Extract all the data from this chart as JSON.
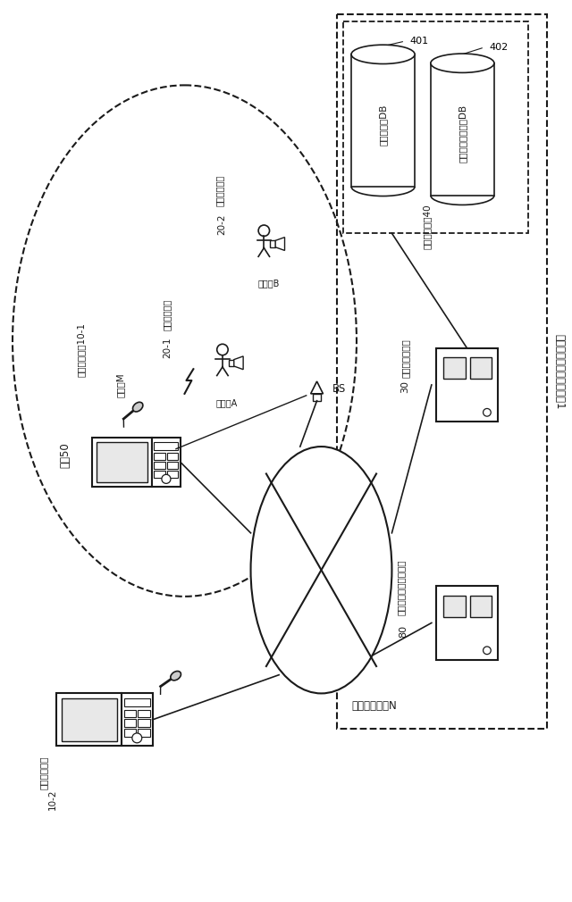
{
  "bg_color": "#ffffff",
  "lc": "#1a1a1a",
  "system_label": "カラオケ用通信システム1",
  "karaoke_10_1_label": "カラオケ装置10-1",
  "karaoke_10_2_label": "カラオケ装置",
  "karaoke_10_2_ref": "10-2",
  "tsushin_20_1_label": "通信端末装置",
  "tsushin_20_1_ref": "20-1",
  "tsushin_20_2_label": "通信端末装置",
  "tsushin_20_2_ref": "20-2",
  "user_a_label": "ユーザA",
  "user_b_label": "ユーザB",
  "mike_m_label": "マイクM",
  "mise_50_label": "店舗50",
  "bs_label": "BS",
  "network_n_label": "ネットワークN",
  "kanri_server_label": "管理サーバ装置",
  "kanri_server_ref": "30",
  "data_server_label": "データ提供サーバ装置",
  "data_server_ref": "80",
  "gaibuki_label": "外部記憶装置40",
  "user_db_label": "ユーザ管理DB",
  "karaoke_db_label": "カラオケデータ用DB",
  "ref_401": "401",
  "ref_402": "402"
}
